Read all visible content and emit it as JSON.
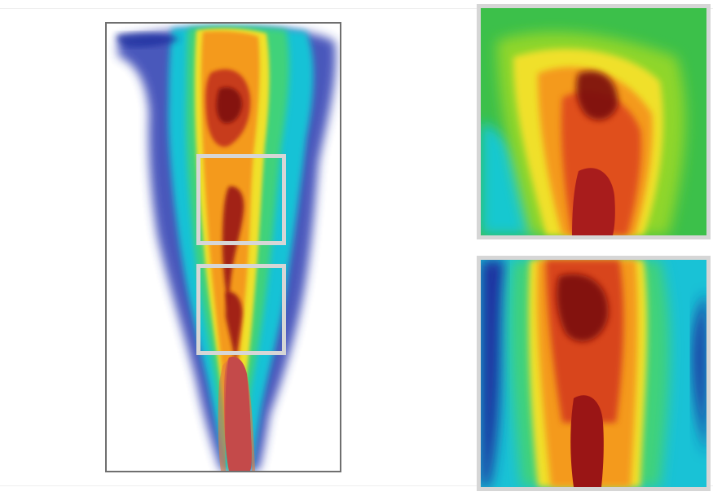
{
  "figure": {
    "kind": "turbulent jet plume visualization",
    "colormap": [
      "#1a1f8f",
      "#2a5fd0",
      "#18c8d8",
      "#2fcf7a",
      "#9ee02a",
      "#f2e22a",
      "#f6a21a",
      "#e4541a",
      "#a81818",
      "#6e0d0d"
    ],
    "panels": [
      {
        "id": "overview",
        "has_regions": 2
      },
      {
        "id": "zoom-upper",
        "source_region": "upper"
      },
      {
        "id": "zoom-lower",
        "source_region": "lower"
      }
    ],
    "frame_color": "#6f6f6f",
    "roi_color": "#d6d6d6"
  }
}
